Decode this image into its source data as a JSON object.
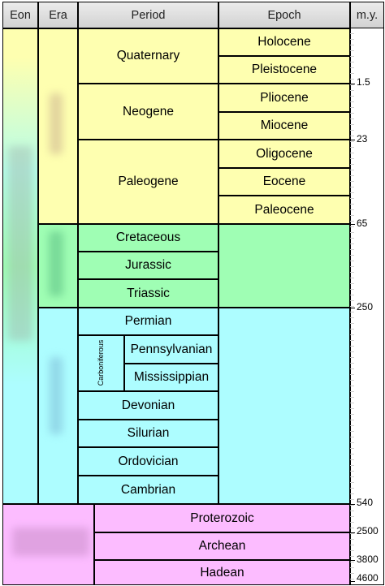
{
  "headers": {
    "eon": "Eon",
    "era": "Era",
    "period": "Period",
    "epoch": "Epoch",
    "my": "m.y."
  },
  "periods": {
    "quaternary": "Quaternary",
    "neogene": "Neogene",
    "paleogene": "Paleogene",
    "cretaceous": "Cretaceous",
    "jurassic": "Jurassic",
    "triassic": "Triassic",
    "permian": "Permian",
    "carboniferous": "Carboniferous",
    "pennsylvanian": "Pennsylvanian",
    "mississippian": "Mississippian",
    "devonian": "Devonian",
    "silurian": "Silurian",
    "ordovician": "Ordovician",
    "cambrian": "Cambrian"
  },
  "epochs": {
    "holocene": "Holocene",
    "pleistocene": "Pleistocene",
    "pliocene": "Pliocene",
    "miocene": "Miocene",
    "oligocene": "Oligocene",
    "eocene": "Eocene",
    "paleocene": "Paleocene"
  },
  "precambrian": {
    "proterozoic": "Proterozoic",
    "archean": "Archean",
    "hadean": "Hadean"
  },
  "ticks": {
    "t1": "1.5",
    "t2": "23",
    "t3": "65",
    "t4": "250",
    "t5": "540",
    "t6": "2500",
    "t7": "3800",
    "t8": "4600"
  },
  "colors": {
    "cenozoic": "#feffb0",
    "mesozoic": "#9ffeb4",
    "paleozoic": "#adfdff",
    "precambrian": "#fcbcff"
  }
}
